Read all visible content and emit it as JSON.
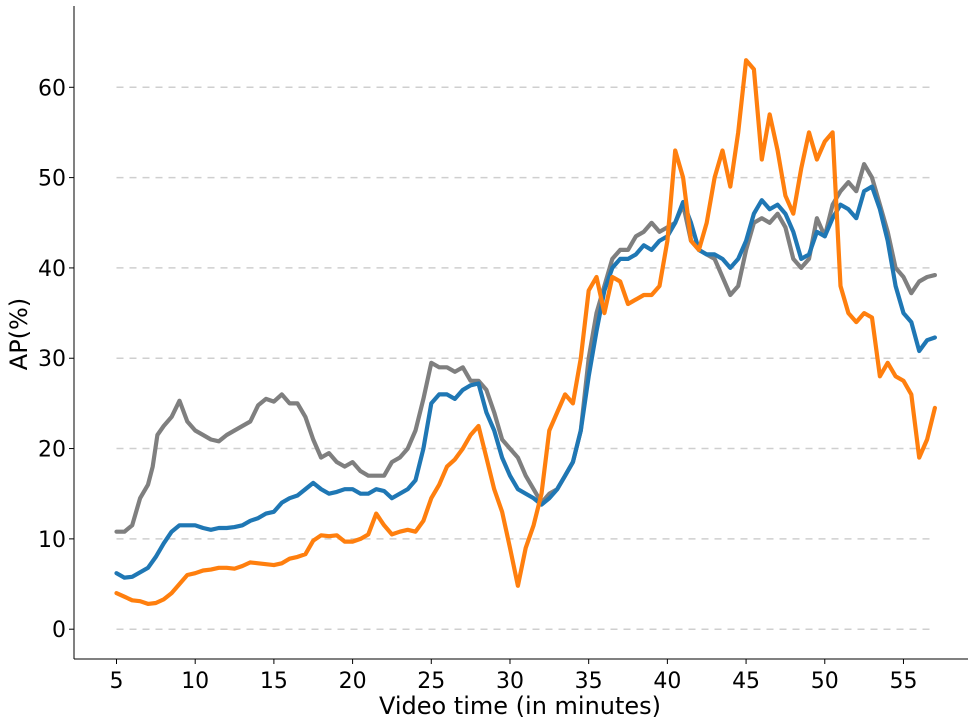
{
  "chart_data": {
    "type": "line",
    "title": "",
    "xlabel": "Video time (in minutes)",
    "ylabel": "AP(%)",
    "xlim": [
      2.3,
      59.1
    ],
    "ylim": [
      -3.3,
      69
    ],
    "xticks": [
      5,
      10,
      15,
      20,
      25,
      30,
      35,
      40,
      45,
      50,
      55
    ],
    "yticks": [
      0,
      10,
      20,
      30,
      40,
      50,
      60
    ],
    "grid": "y-dashed",
    "legend": "none",
    "series": [
      {
        "color": "#7f7f7f",
        "points": [
          [
            5,
            10.8
          ],
          [
            5.5,
            10.8
          ],
          [
            6,
            11.5
          ],
          [
            6.5,
            14.5
          ],
          [
            7,
            16
          ],
          [
            7.3,
            18
          ],
          [
            7.6,
            21.5
          ],
          [
            8,
            22.5
          ],
          [
            8.5,
            23.5
          ],
          [
            9,
            25.3
          ],
          [
            9.5,
            23
          ],
          [
            10,
            22
          ],
          [
            10.5,
            21.5
          ],
          [
            11,
            21
          ],
          [
            11.5,
            20.8
          ],
          [
            12,
            21.5
          ],
          [
            12.5,
            22
          ],
          [
            13,
            22.5
          ],
          [
            13.5,
            23
          ],
          [
            14,
            24.8
          ],
          [
            14.5,
            25.5
          ],
          [
            15,
            25.2
          ],
          [
            15.5,
            26
          ],
          [
            16,
            25
          ],
          [
            16.5,
            25
          ],
          [
            17,
            23.5
          ],
          [
            17.5,
            21
          ],
          [
            18,
            19
          ],
          [
            18.5,
            19.5
          ],
          [
            19,
            18.5
          ],
          [
            19.5,
            18
          ],
          [
            20,
            18.5
          ],
          [
            20.5,
            17.5
          ],
          [
            21,
            17
          ],
          [
            21.5,
            17
          ],
          [
            22,
            17
          ],
          [
            22.5,
            18.5
          ],
          [
            23,
            19
          ],
          [
            23.5,
            20
          ],
          [
            24,
            22
          ],
          [
            24.5,
            25.5
          ],
          [
            25,
            29.5
          ],
          [
            25.5,
            29
          ],
          [
            26,
            29
          ],
          [
            26.5,
            28.5
          ],
          [
            27,
            29
          ],
          [
            27.5,
            27.5
          ],
          [
            28,
            27.5
          ],
          [
            28.5,
            26.5
          ],
          [
            29,
            24
          ],
          [
            29.5,
            21
          ],
          [
            30,
            20
          ],
          [
            30.5,
            19
          ],
          [
            31,
            17
          ],
          [
            31.5,
            15.5
          ],
          [
            32,
            14
          ],
          [
            32.5,
            15
          ],
          [
            33,
            15.5
          ],
          [
            33.5,
            17
          ],
          [
            34,
            18.5
          ],
          [
            34.5,
            22
          ],
          [
            35,
            30
          ],
          [
            35.5,
            35
          ],
          [
            36,
            38
          ],
          [
            36.5,
            41
          ],
          [
            37,
            42
          ],
          [
            37.5,
            42
          ],
          [
            38,
            43.5
          ],
          [
            38.5,
            44
          ],
          [
            39,
            45
          ],
          [
            39.5,
            44
          ],
          [
            40,
            44.5
          ],
          [
            40.5,
            45
          ],
          [
            41,
            47
          ],
          [
            41.5,
            43
          ],
          [
            42,
            42
          ],
          [
            42.5,
            41.5
          ],
          [
            43,
            41
          ],
          [
            43.5,
            39
          ],
          [
            44,
            37
          ],
          [
            44.5,
            38
          ],
          [
            45,
            42
          ],
          [
            45.5,
            45
          ],
          [
            46,
            45.5
          ],
          [
            46.5,
            45
          ],
          [
            47,
            46
          ],
          [
            47.5,
            44.5
          ],
          [
            48,
            41
          ],
          [
            48.5,
            40
          ],
          [
            49,
            41
          ],
          [
            49.5,
            45.5
          ],
          [
            50,
            43.5
          ],
          [
            50.5,
            47
          ],
          [
            51,
            48.5
          ],
          [
            51.5,
            49.5
          ],
          [
            52,
            48.5
          ],
          [
            52.5,
            51.5
          ],
          [
            53,
            50
          ],
          [
            53.5,
            47
          ],
          [
            54,
            44
          ],
          [
            54.5,
            40
          ],
          [
            55,
            39
          ],
          [
            55.5,
            37.2
          ],
          [
            56,
            38.5
          ],
          [
            56.5,
            39
          ],
          [
            57,
            39.2
          ]
        ]
      },
      {
        "color": "#1f77b4",
        "points": [
          [
            5,
            6.2
          ],
          [
            5.5,
            5.7
          ],
          [
            6,
            5.8
          ],
          [
            6.5,
            6.3
          ],
          [
            7,
            6.8
          ],
          [
            7.5,
            8
          ],
          [
            8,
            9.5
          ],
          [
            8.5,
            10.8
          ],
          [
            9,
            11.5
          ],
          [
            9.5,
            11.5
          ],
          [
            10,
            11.5
          ],
          [
            10.5,
            11.2
          ],
          [
            11,
            11
          ],
          [
            11.5,
            11.2
          ],
          [
            12,
            11.2
          ],
          [
            12.5,
            11.3
          ],
          [
            13,
            11.5
          ],
          [
            13.5,
            12
          ],
          [
            14,
            12.3
          ],
          [
            14.5,
            12.8
          ],
          [
            15,
            13
          ],
          [
            15.5,
            14
          ],
          [
            16,
            14.5
          ],
          [
            16.5,
            14.8
          ],
          [
            17,
            15.5
          ],
          [
            17.5,
            16.2
          ],
          [
            18,
            15.5
          ],
          [
            18.5,
            15
          ],
          [
            19,
            15.2
          ],
          [
            19.5,
            15.5
          ],
          [
            20,
            15.5
          ],
          [
            20.5,
            15
          ],
          [
            21,
            15
          ],
          [
            21.5,
            15.5
          ],
          [
            22,
            15.3
          ],
          [
            22.5,
            14.5
          ],
          [
            23,
            15
          ],
          [
            23.5,
            15.5
          ],
          [
            24,
            16.5
          ],
          [
            24.5,
            20
          ],
          [
            25,
            25
          ],
          [
            25.5,
            26
          ],
          [
            26,
            26
          ],
          [
            26.5,
            25.5
          ],
          [
            27,
            26.5
          ],
          [
            27.5,
            27
          ],
          [
            28,
            27.2
          ],
          [
            28.5,
            24
          ],
          [
            29,
            22
          ],
          [
            29.5,
            19
          ],
          [
            30,
            17
          ],
          [
            30.5,
            15.5
          ],
          [
            31,
            15
          ],
          [
            31.5,
            14.5
          ],
          [
            32,
            13.8
          ],
          [
            32.5,
            14.5
          ],
          [
            33,
            15.5
          ],
          [
            33.5,
            17
          ],
          [
            34,
            18.5
          ],
          [
            34.5,
            22
          ],
          [
            35,
            28
          ],
          [
            35.5,
            33
          ],
          [
            36,
            37.5
          ],
          [
            36.5,
            40
          ],
          [
            37,
            41
          ],
          [
            37.5,
            41
          ],
          [
            38,
            41.5
          ],
          [
            38.5,
            42.5
          ],
          [
            39,
            42
          ],
          [
            39.5,
            43
          ],
          [
            40,
            43.5
          ],
          [
            40.5,
            45
          ],
          [
            41,
            47.3
          ],
          [
            41.5,
            45
          ],
          [
            42,
            42
          ],
          [
            42.5,
            41.5
          ],
          [
            43,
            41.5
          ],
          [
            43.5,
            41
          ],
          [
            44,
            40
          ],
          [
            44.5,
            41
          ],
          [
            45,
            43
          ],
          [
            45.5,
            46
          ],
          [
            46,
            47.5
          ],
          [
            46.5,
            46.5
          ],
          [
            47,
            47
          ],
          [
            47.5,
            46
          ],
          [
            48,
            44
          ],
          [
            48.5,
            41
          ],
          [
            49,
            41.5
          ],
          [
            49.5,
            44
          ],
          [
            50,
            43.5
          ],
          [
            50.5,
            45.5
          ],
          [
            51,
            47
          ],
          [
            51.5,
            46.5
          ],
          [
            52,
            45.5
          ],
          [
            52.5,
            48.5
          ],
          [
            53,
            49
          ],
          [
            53.5,
            46.5
          ],
          [
            54,
            43
          ],
          [
            54.5,
            38
          ],
          [
            55,
            35
          ],
          [
            55.5,
            34
          ],
          [
            56,
            30.8
          ],
          [
            56.5,
            32
          ],
          [
            57,
            32.3
          ]
        ]
      },
      {
        "color": "#ff7f0e",
        "points": [
          [
            5,
            4
          ],
          [
            5.5,
            3.6
          ],
          [
            6,
            3.2
          ],
          [
            6.5,
            3.1
          ],
          [
            7,
            2.8
          ],
          [
            7.5,
            2.9
          ],
          [
            8,
            3.3
          ],
          [
            8.5,
            4
          ],
          [
            9,
            5
          ],
          [
            9.5,
            6
          ],
          [
            10,
            6.2
          ],
          [
            10.5,
            6.5
          ],
          [
            11,
            6.6
          ],
          [
            11.5,
            6.8
          ],
          [
            12,
            6.8
          ],
          [
            12.5,
            6.7
          ],
          [
            13,
            7
          ],
          [
            13.5,
            7.4
          ],
          [
            14,
            7.3
          ],
          [
            14.5,
            7.2
          ],
          [
            15,
            7.1
          ],
          [
            15.5,
            7.3
          ],
          [
            16,
            7.8
          ],
          [
            16.5,
            8
          ],
          [
            17,
            8.3
          ],
          [
            17.5,
            9.8
          ],
          [
            18,
            10.4
          ],
          [
            18.5,
            10.3
          ],
          [
            19,
            10.4
          ],
          [
            19.5,
            9.7
          ],
          [
            20,
            9.7
          ],
          [
            20.5,
            10
          ],
          [
            21,
            10.5
          ],
          [
            21.5,
            12.8
          ],
          [
            22,
            11.5
          ],
          [
            22.5,
            10.5
          ],
          [
            23,
            10.8
          ],
          [
            23.5,
            11
          ],
          [
            24,
            10.8
          ],
          [
            24.5,
            12
          ],
          [
            25,
            14.5
          ],
          [
            25.5,
            16
          ],
          [
            26,
            18
          ],
          [
            26.5,
            18.8
          ],
          [
            27,
            20
          ],
          [
            27.5,
            21.5
          ],
          [
            28,
            22.5
          ],
          [
            28.5,
            19
          ],
          [
            29,
            15.5
          ],
          [
            29.5,
            13
          ],
          [
            30,
            9
          ],
          [
            30.5,
            4.8
          ],
          [
            31,
            9
          ],
          [
            31.5,
            11.5
          ],
          [
            32,
            15
          ],
          [
            32.5,
            22
          ],
          [
            33,
            24
          ],
          [
            33.5,
            26
          ],
          [
            34,
            25
          ],
          [
            34.5,
            30
          ],
          [
            35,
            37.5
          ],
          [
            35.5,
            39
          ],
          [
            36,
            35
          ],
          [
            36.5,
            39
          ],
          [
            37,
            38.5
          ],
          [
            37.5,
            36
          ],
          [
            38,
            36.5
          ],
          [
            38.5,
            37
          ],
          [
            39,
            37
          ],
          [
            39.5,
            38
          ],
          [
            40,
            43
          ],
          [
            40.5,
            53
          ],
          [
            41,
            50
          ],
          [
            41.5,
            43
          ],
          [
            42,
            42
          ],
          [
            42.5,
            45
          ],
          [
            43,
            50
          ],
          [
            43.5,
            53
          ],
          [
            44,
            49
          ],
          [
            44.5,
            55
          ],
          [
            45,
            63
          ],
          [
            45.5,
            62
          ],
          [
            46,
            52
          ],
          [
            46.5,
            57
          ],
          [
            47,
            53
          ],
          [
            47.5,
            48
          ],
          [
            48,
            46
          ],
          [
            48.5,
            51
          ],
          [
            49,
            55
          ],
          [
            49.5,
            52
          ],
          [
            50,
            54
          ],
          [
            50.5,
            55
          ],
          [
            51,
            38
          ],
          [
            51.5,
            35
          ],
          [
            52,
            34
          ],
          [
            52.5,
            35
          ],
          [
            53,
            34.5
          ],
          [
            53.5,
            28
          ],
          [
            54,
            29.5
          ],
          [
            54.5,
            28
          ],
          [
            55,
            27.5
          ],
          [
            55.5,
            26
          ],
          [
            56,
            19
          ],
          [
            56.5,
            21
          ],
          [
            57,
            24.5
          ]
        ]
      }
    ]
  }
}
